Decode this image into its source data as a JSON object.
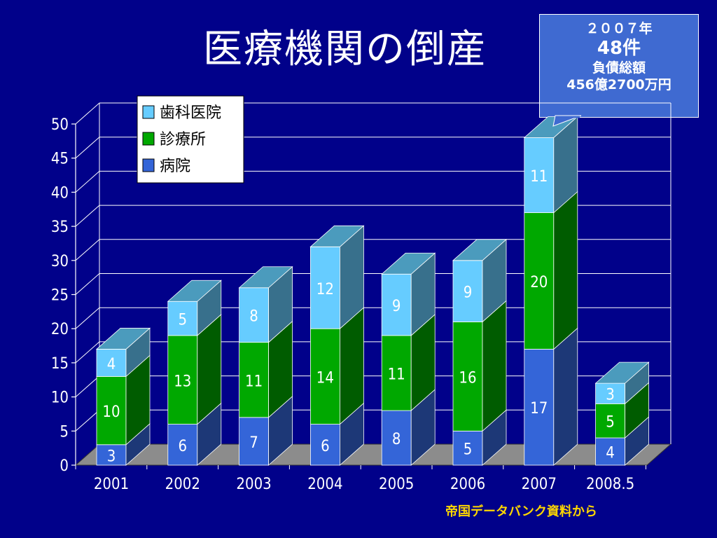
{
  "title": "医療機関の倒産",
  "callout": {
    "line1": "２００７年",
    "line2": "48件",
    "line3": "負債総額",
    "line4": "456億2700万円"
  },
  "source": "帝国データバンク資料から",
  "colors": {
    "background": "#01018a",
    "hospital": "#3465d8",
    "clinic": "#00a800",
    "dental": "#66ccff"
  },
  "chart_data": {
    "type": "bar",
    "stacked": true,
    "categories": [
      "2001",
      "2002",
      "2003",
      "2004",
      "2005",
      "2006",
      "2007",
      "2008.5"
    ],
    "series": [
      {
        "name": "病院",
        "values": [
          3,
          6,
          7,
          6,
          8,
          5,
          17,
          4
        ]
      },
      {
        "name": "診療所",
        "values": [
          10,
          13,
          11,
          14,
          11,
          16,
          20,
          5
        ]
      },
      {
        "name": "歯科医院",
        "values": [
          4,
          5,
          8,
          12,
          9,
          9,
          11,
          3
        ]
      }
    ],
    "legend": [
      "歯科医院",
      "診療所",
      "病院"
    ],
    "yticks": [
      "0",
      "5",
      "10",
      "15",
      "20",
      "25",
      "30",
      "35",
      "40",
      "45",
      "50"
    ],
    "ylim": [
      0,
      50
    ],
    "grid": true,
    "legend_position": "top-left"
  }
}
